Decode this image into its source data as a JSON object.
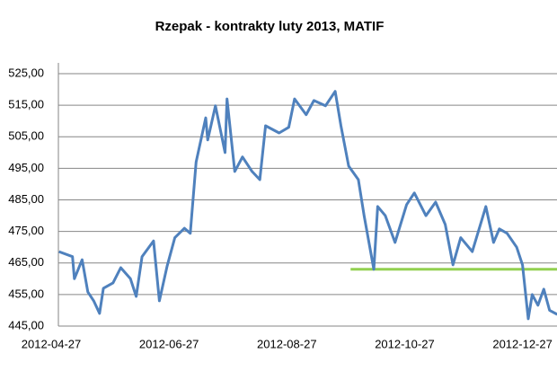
{
  "chart_data": {
    "type": "line",
    "title": "Rzepak - kontrakty luty 2013, MATIF",
    "x": [
      "2012-05-01",
      "2012-05-08",
      "2012-05-09",
      "2012-05-13",
      "2012-05-16",
      "2012-05-19",
      "2012-05-22",
      "2012-05-24",
      "2012-05-29",
      "2012-06-02",
      "2012-06-07",
      "2012-06-10",
      "2012-06-13",
      "2012-06-19",
      "2012-06-22",
      "2012-06-26",
      "2012-06-30",
      "2012-07-05",
      "2012-07-08",
      "2012-07-11",
      "2012-07-16",
      "2012-07-17",
      "2012-07-21",
      "2012-07-26",
      "2012-07-27",
      "2012-07-31",
      "2012-08-04",
      "2012-08-09",
      "2012-08-13",
      "2012-08-16",
      "2012-08-23",
      "2012-08-28",
      "2012-08-31",
      "2012-09-06",
      "2012-09-10",
      "2012-09-16",
      "2012-09-21",
      "2012-09-24",
      "2012-09-28",
      "2012-10-03",
      "2012-10-06",
      "2012-10-11",
      "2012-10-13",
      "2012-10-17",
      "2012-10-22",
      "2012-10-28",
      "2012-11-01",
      "2012-11-07",
      "2012-11-12",
      "2012-11-17",
      "2012-11-21",
      "2012-11-25",
      "2012-12-01",
      "2012-12-08",
      "2012-12-12",
      "2012-12-15",
      "2012-12-19",
      "2012-12-24",
      "2012-12-27",
      "2012-12-30",
      "2013-01-01",
      "2013-01-04",
      "2013-01-07",
      "2013-01-10",
      "2013-01-14"
    ],
    "series": [
      {
        "color": "#4f81bd",
        "values": [
          468.6,
          467,
          460,
          466,
          455.8,
          453,
          449,
          457,
          458.7,
          463.5,
          460,
          454.4,
          467,
          472,
          453,
          464,
          473,
          476,
          474.4,
          497,
          511,
          504,
          514.8,
          500,
          517,
          494,
          498.6,
          494,
          491.4,
          508.5,
          506.2,
          508,
          517,
          512,
          516.5,
          514.8,
          519.4,
          508.5,
          495.7,
          491.4,
          480,
          463,
          482.9,
          480,
          471.5,
          483.5,
          487.2,
          480,
          484.3,
          477.2,
          464.4,
          473,
          468.6,
          482.9,
          471.5,
          475.8,
          474.4,
          470,
          464.4,
          447.3,
          455,
          451.6,
          456.7,
          450,
          448.7
        ]
      }
    ],
    "support_line": {
      "value": 463,
      "from": "2012-09-29",
      "to": "2013-01-14",
      "color": "#92d050"
    },
    "xlim": [
      "2012-04-27",
      "2013-01-16"
    ],
    "xticks": [
      "2012-04-27",
      "2012-06-27",
      "2012-08-27",
      "2012-10-27",
      "2012-12-27"
    ],
    "ylim": [
      445,
      525
    ],
    "yticks": [
      {
        "value": 445,
        "label": "445,00"
      },
      {
        "value": 455,
        "label": "455,00"
      },
      {
        "value": 465,
        "label": "465,00"
      },
      {
        "value": 475,
        "label": "475,00"
      },
      {
        "value": 485,
        "label": "485,00"
      },
      {
        "value": 495,
        "label": "495,00"
      },
      {
        "value": 505,
        "label": "505,00"
      },
      {
        "value": 515,
        "label": "515,00"
      },
      {
        "value": 525,
        "label": "525,00"
      }
    ],
    "grid": true
  }
}
